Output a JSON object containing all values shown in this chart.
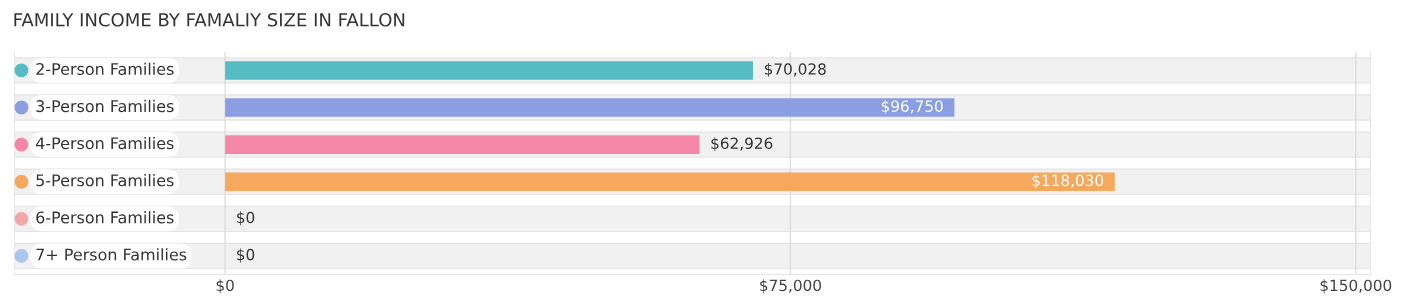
{
  "chart_data": {
    "type": "bar",
    "orientation": "horizontal",
    "title": "FAMILY INCOME BY FAMALIY SIZE IN FALLON",
    "categories": [
      "2-Person Families",
      "3-Person Families",
      "4-Person Families",
      "5-Person Families",
      "6-Person Families",
      "7+ Person Families"
    ],
    "values": [
      70028,
      96750,
      62926,
      118030,
      0,
      0
    ],
    "value_labels": [
      "$70,028",
      "$96,750",
      "$62,926",
      "$118,030",
      "$0",
      "$0"
    ],
    "colors": [
      "#56bcc4",
      "#8c9ee2",
      "#f487a8",
      "#f6a85c",
      "#f1a9a8",
      "#a9c8ef"
    ],
    "xlim": [
      -28000,
      152000
    ],
    "xticks": [
      {
        "value": 0,
        "label": "$0"
      },
      {
        "value": 75000,
        "label": "$75,000"
      },
      {
        "value": 150000,
        "label": "$150,000"
      }
    ],
    "grid": "x"
  }
}
